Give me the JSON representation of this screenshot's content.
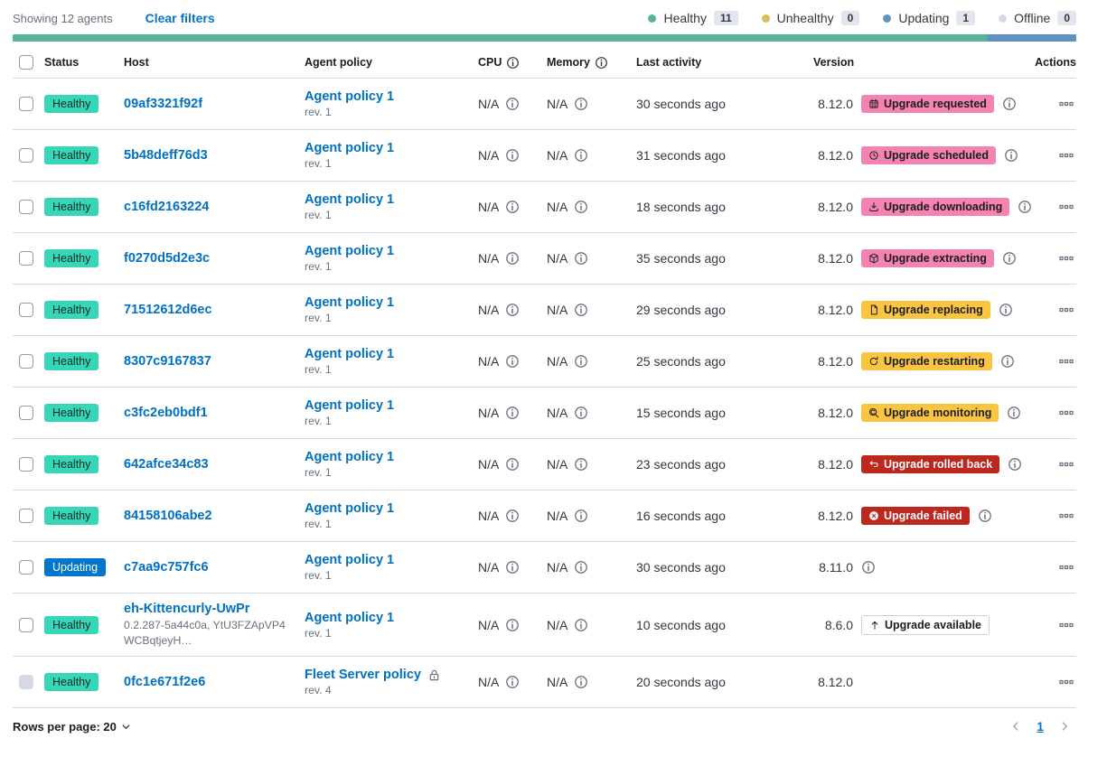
{
  "toolbar": {
    "showing_text": "Showing 12 agents",
    "clear_filters_label": "Clear filters"
  },
  "legend": {
    "items": [
      {
        "label": "Healthy",
        "count": "11",
        "color": "#54B399"
      },
      {
        "label": "Unhealthy",
        "count": "0",
        "color": "#D6BF57"
      },
      {
        "label": "Updating",
        "count": "1",
        "color": "#6092C0"
      },
      {
        "label": "Offline",
        "count": "0",
        "color": "#D3DAE6"
      }
    ]
  },
  "health_bar": {
    "segments": [
      {
        "color": "#54B399",
        "percent": 91.7
      },
      {
        "color": "#6092C0",
        "percent": 8.3
      }
    ]
  },
  "colors": {
    "healthy_badge": "#36D6B7",
    "updating_badge": "#0077CC",
    "accent_badge": "#F583B2",
    "warning_badge": "#FCC541",
    "danger_badge": "#BD271E",
    "link": "#0071C2"
  },
  "table": {
    "headers": {
      "status": "Status",
      "host": "Host",
      "policy": "Agent policy",
      "cpu": "CPU",
      "memory": "Memory",
      "last_activity": "Last activity",
      "version": "Version",
      "actions": "Actions"
    },
    "rows": [
      {
        "status": {
          "label": "Healthy",
          "variant": "success"
        },
        "host": {
          "name": "09af3321f92f",
          "sub": null
        },
        "policy": {
          "name": "Agent policy 1",
          "rev": "rev. 1",
          "locked": false
        },
        "cpu": "N/A",
        "memory": "N/A",
        "last_activity": "30 seconds ago",
        "version": "8.12.0",
        "upgrade_badge": {
          "label": "Upgrade requested",
          "icon": "calendar-icon",
          "variant": "accent"
        },
        "version_info_icon": true,
        "checkbox_disabled": false
      },
      {
        "status": {
          "label": "Healthy",
          "variant": "success"
        },
        "host": {
          "name": "5b48deff76d3",
          "sub": null
        },
        "policy": {
          "name": "Agent policy 1",
          "rev": "rev. 1",
          "locked": false
        },
        "cpu": "N/A",
        "memory": "N/A",
        "last_activity": "31 seconds ago",
        "version": "8.12.0",
        "upgrade_badge": {
          "label": "Upgrade scheduled",
          "icon": "clock-icon",
          "variant": "accent"
        },
        "version_info_icon": true,
        "checkbox_disabled": false
      },
      {
        "status": {
          "label": "Healthy",
          "variant": "success"
        },
        "host": {
          "name": "c16fd2163224",
          "sub": null
        },
        "policy": {
          "name": "Agent policy 1",
          "rev": "rev. 1",
          "locked": false
        },
        "cpu": "N/A",
        "memory": "N/A",
        "last_activity": "18 seconds ago",
        "version": "8.12.0",
        "upgrade_badge": {
          "label": "Upgrade downloading",
          "icon": "download-icon",
          "variant": "accent"
        },
        "version_info_icon": true,
        "checkbox_disabled": false
      },
      {
        "status": {
          "label": "Healthy",
          "variant": "success"
        },
        "host": {
          "name": "f0270d5d2e3c",
          "sub": null
        },
        "policy": {
          "name": "Agent policy 1",
          "rev": "rev. 1",
          "locked": false
        },
        "cpu": "N/A",
        "memory": "N/A",
        "last_activity": "35 seconds ago",
        "version": "8.12.0",
        "upgrade_badge": {
          "label": "Upgrade extracting",
          "icon": "package-icon",
          "variant": "accent"
        },
        "version_info_icon": true,
        "checkbox_disabled": false
      },
      {
        "status": {
          "label": "Healthy",
          "variant": "success"
        },
        "host": {
          "name": "71512612d6ec",
          "sub": null
        },
        "policy": {
          "name": "Agent policy 1",
          "rev": "rev. 1",
          "locked": false
        },
        "cpu": "N/A",
        "memory": "N/A",
        "last_activity": "29 seconds ago",
        "version": "8.12.0",
        "upgrade_badge": {
          "label": "Upgrade replacing",
          "icon": "document-icon",
          "variant": "warning"
        },
        "version_info_icon": true,
        "checkbox_disabled": false
      },
      {
        "status": {
          "label": "Healthy",
          "variant": "success"
        },
        "host": {
          "name": "8307c9167837",
          "sub": null
        },
        "policy": {
          "name": "Agent policy 1",
          "rev": "rev. 1",
          "locked": false
        },
        "cpu": "N/A",
        "memory": "N/A",
        "last_activity": "25 seconds ago",
        "version": "8.12.0",
        "upgrade_badge": {
          "label": "Upgrade restarting",
          "icon": "refresh-icon",
          "variant": "warning"
        },
        "version_info_icon": true,
        "checkbox_disabled": false
      },
      {
        "status": {
          "label": "Healthy",
          "variant": "success"
        },
        "host": {
          "name": "c3fc2eb0bdf1",
          "sub": null
        },
        "policy": {
          "name": "Agent policy 1",
          "rev": "rev. 1",
          "locked": false
        },
        "cpu": "N/A",
        "memory": "N/A",
        "last_activity": "15 seconds ago",
        "version": "8.12.0",
        "upgrade_badge": {
          "label": "Upgrade monitoring",
          "icon": "monitoring-icon",
          "variant": "warning"
        },
        "version_info_icon": true,
        "checkbox_disabled": false
      },
      {
        "status": {
          "label": "Healthy",
          "variant": "success"
        },
        "host": {
          "name": "642afce34c83",
          "sub": null
        },
        "policy": {
          "name": "Agent policy 1",
          "rev": "rev. 1",
          "locked": false
        },
        "cpu": "N/A",
        "memory": "N/A",
        "last_activity": "23 seconds ago",
        "version": "8.12.0",
        "upgrade_badge": {
          "label": "Upgrade rolled back",
          "icon": "return-arrow-icon",
          "variant": "danger"
        },
        "version_info_icon": true,
        "checkbox_disabled": false
      },
      {
        "status": {
          "label": "Healthy",
          "variant": "success"
        },
        "host": {
          "name": "84158106abe2",
          "sub": null
        },
        "policy": {
          "name": "Agent policy 1",
          "rev": "rev. 1",
          "locked": false
        },
        "cpu": "N/A",
        "memory": "N/A",
        "last_activity": "16 seconds ago",
        "version": "8.12.0",
        "upgrade_badge": {
          "label": "Upgrade failed",
          "icon": "cross-circle-icon",
          "variant": "danger"
        },
        "version_info_icon": true,
        "checkbox_disabled": false
      },
      {
        "status": {
          "label": "Updating",
          "variant": "primary"
        },
        "host": {
          "name": "c7aa9c757fc6",
          "sub": null
        },
        "policy": {
          "name": "Agent policy 1",
          "rev": "rev. 1",
          "locked": false
        },
        "cpu": "N/A",
        "memory": "N/A",
        "last_activity": "30 seconds ago",
        "version": "8.11.0",
        "upgrade_badge": null,
        "version_info_icon": true,
        "checkbox_disabled": false
      },
      {
        "status": {
          "label": "Healthy",
          "variant": "success"
        },
        "host": {
          "name": "eh-Kittencurly-UwPr",
          "sub": "0.2.287-5a44c0a, YtU3FZApVP4WCBqtjeyH…"
        },
        "policy": {
          "name": "Agent policy 1",
          "rev": "rev. 1",
          "locked": false
        },
        "cpu": "N/A",
        "memory": "N/A",
        "last_activity": "10 seconds ago",
        "version": "8.6.0",
        "upgrade_badge": {
          "label": "Upgrade available",
          "icon": "arrow-up-icon",
          "variant": "hollow"
        },
        "version_info_icon": false,
        "checkbox_disabled": false
      },
      {
        "status": {
          "label": "Healthy",
          "variant": "success"
        },
        "host": {
          "name": "0fc1e671f2e6",
          "sub": null
        },
        "policy": {
          "name": "Fleet Server policy",
          "rev": "rev. 4",
          "locked": true
        },
        "cpu": "N/A",
        "memory": "N/A",
        "last_activity": "20 seconds ago",
        "version": "8.12.0",
        "upgrade_badge": null,
        "version_info_icon": false,
        "checkbox_disabled": true
      }
    ]
  },
  "footer": {
    "rows_per_page_label": "Rows per page: 20",
    "page": "1"
  }
}
